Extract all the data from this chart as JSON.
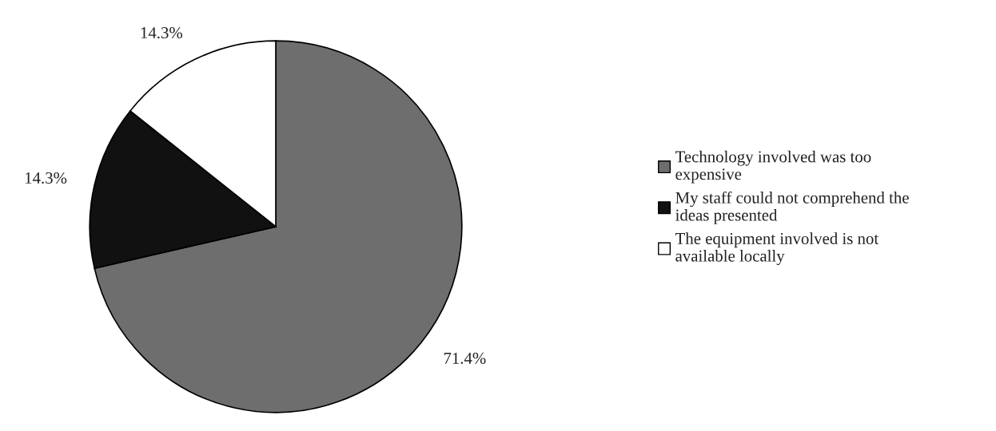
{
  "chart_data": {
    "type": "pie",
    "categories": [
      "Technology involved was too expensive",
      "My staff could not comprehend the ideas presented",
      "The equipment involved is not available locally"
    ],
    "values": [
      71.4,
      14.3,
      14.3
    ],
    "colors": [
      "#6e6e6e",
      "#111111",
      "#ffffff"
    ],
    "value_labels": [
      "71.4%",
      "14.3%",
      "14.3%"
    ],
    "legend": "right"
  }
}
